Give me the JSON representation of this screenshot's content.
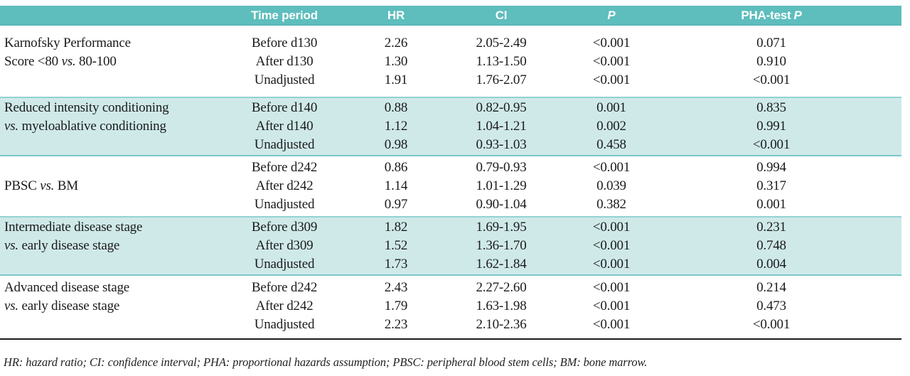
{
  "colors": {
    "header_teal": "#5ebdbd",
    "header_edge": "#4aacae",
    "band_teal": "#cfe9e9",
    "band_edge_top": "#93d2d2",
    "band_edge_bottom": "#7cc7c8",
    "rule_dark": "#1c1c1c"
  },
  "table": {
    "header": {
      "comparison": "",
      "time": "Time period",
      "hr": "HR",
      "ci": "CI",
      "p": "P",
      "pha_prefix": "PHA-test",
      "pha_p": "P"
    },
    "groups": [
      {
        "highlight": false,
        "label_valign": "top",
        "label_lines": [
          [
            {
              "text": "Karnofsky Performance"
            }
          ],
          [
            {
              "text": "Score <80 "
            },
            {
              "text": "vs.",
              "italic": true
            },
            {
              "text": " 80-100"
            }
          ]
        ],
        "rows": [
          {
            "period": "Before d130",
            "hr": "2.26",
            "ci": "2.05-2.49",
            "p": "<0.001",
            "pha": "0.071"
          },
          {
            "period": "After d130",
            "hr": "1.30",
            "ci": "1.13-1.50",
            "p": "<0.001",
            "pha": "0.910"
          },
          {
            "period": "Unadjusted",
            "hr": "1.91",
            "ci": "1.76-2.07",
            "p": "<0.001",
            "pha": "<0.001"
          }
        ]
      },
      {
        "highlight": true,
        "label_valign": "top",
        "label_lines": [
          [
            {
              "text": "Reduced intensity conditioning"
            }
          ],
          [
            {
              "text": "vs.",
              "italic": true
            },
            {
              "text": " myeloablative conditioning"
            }
          ]
        ],
        "rows": [
          {
            "period": "Before d140",
            "hr": "0.88",
            "ci": "0.82-0.95",
            "p": "0.001",
            "pha": "0.835"
          },
          {
            "period": "After d140",
            "hr": "1.12",
            "ci": "1.04-1.21",
            "p": "0.002",
            "pha": "0.991"
          },
          {
            "period": "Unadjusted",
            "hr": "0.98",
            "ci": "0.93-1.03",
            "p": "0.458",
            "pha": "<0.001"
          }
        ]
      },
      {
        "highlight": false,
        "label_valign": "middle",
        "label_lines": [
          [
            {
              "text": "PBSC "
            },
            {
              "text": "vs.",
              "italic": true
            },
            {
              "text": " BM"
            }
          ]
        ],
        "rows": [
          {
            "period": "Before d242",
            "hr": "0.86",
            "ci": "0.79-0.93",
            "p": "<0.001",
            "pha": "0.994"
          },
          {
            "period": "After d242",
            "hr": "1.14",
            "ci": "1.01-1.29",
            "p": "0.039",
            "pha": "0.317"
          },
          {
            "period": "Unadjusted",
            "hr": "0.97",
            "ci": "0.90-1.04",
            "p": "0.382",
            "pha": "0.001"
          }
        ]
      },
      {
        "highlight": true,
        "label_valign": "top",
        "label_lines": [
          [
            {
              "text": "Intermediate disease stage"
            }
          ],
          [
            {
              "text": "vs.",
              "italic": true
            },
            {
              "text": " early disease stage"
            }
          ]
        ],
        "rows": [
          {
            "period": "Before d309",
            "hr": "1.82",
            "ci": "1.69-1.95",
            "p": "<0.001",
            "pha": "0.231"
          },
          {
            "period": "After d309",
            "hr": "1.52",
            "ci": "1.36-1.70",
            "p": "<0.001",
            "pha": "0.748"
          },
          {
            "period": "Unadjusted",
            "hr": "1.73",
            "ci": "1.62-1.84",
            "p": "<0.001",
            "pha": "0.004"
          }
        ]
      },
      {
        "highlight": false,
        "label_valign": "top",
        "label_lines": [
          [
            {
              "text": "Advanced disease stage"
            }
          ],
          [
            {
              "text": "vs.",
              "italic": true
            },
            {
              "text": " early disease stage"
            }
          ]
        ],
        "rows": [
          {
            "period": "Before d242",
            "hr": "2.43",
            "ci": "2.27-2.60",
            "p": "<0.001",
            "pha": "0.214"
          },
          {
            "period": "After d242",
            "hr": "1.79",
            "ci": "1.63-1.98",
            "p": "<0.001",
            "pha": "0.473"
          },
          {
            "period": "Unadjusted",
            "hr": "2.23",
            "ci": "2.10-2.36",
            "p": "<0.001",
            "pha": "<0.001"
          }
        ]
      }
    ],
    "footnote": "HR: hazard ratio; CI: confidence interval; PHA: proportional hazards assumption; PBSC: peripheral blood stem cells; BM: bone marrow."
  }
}
